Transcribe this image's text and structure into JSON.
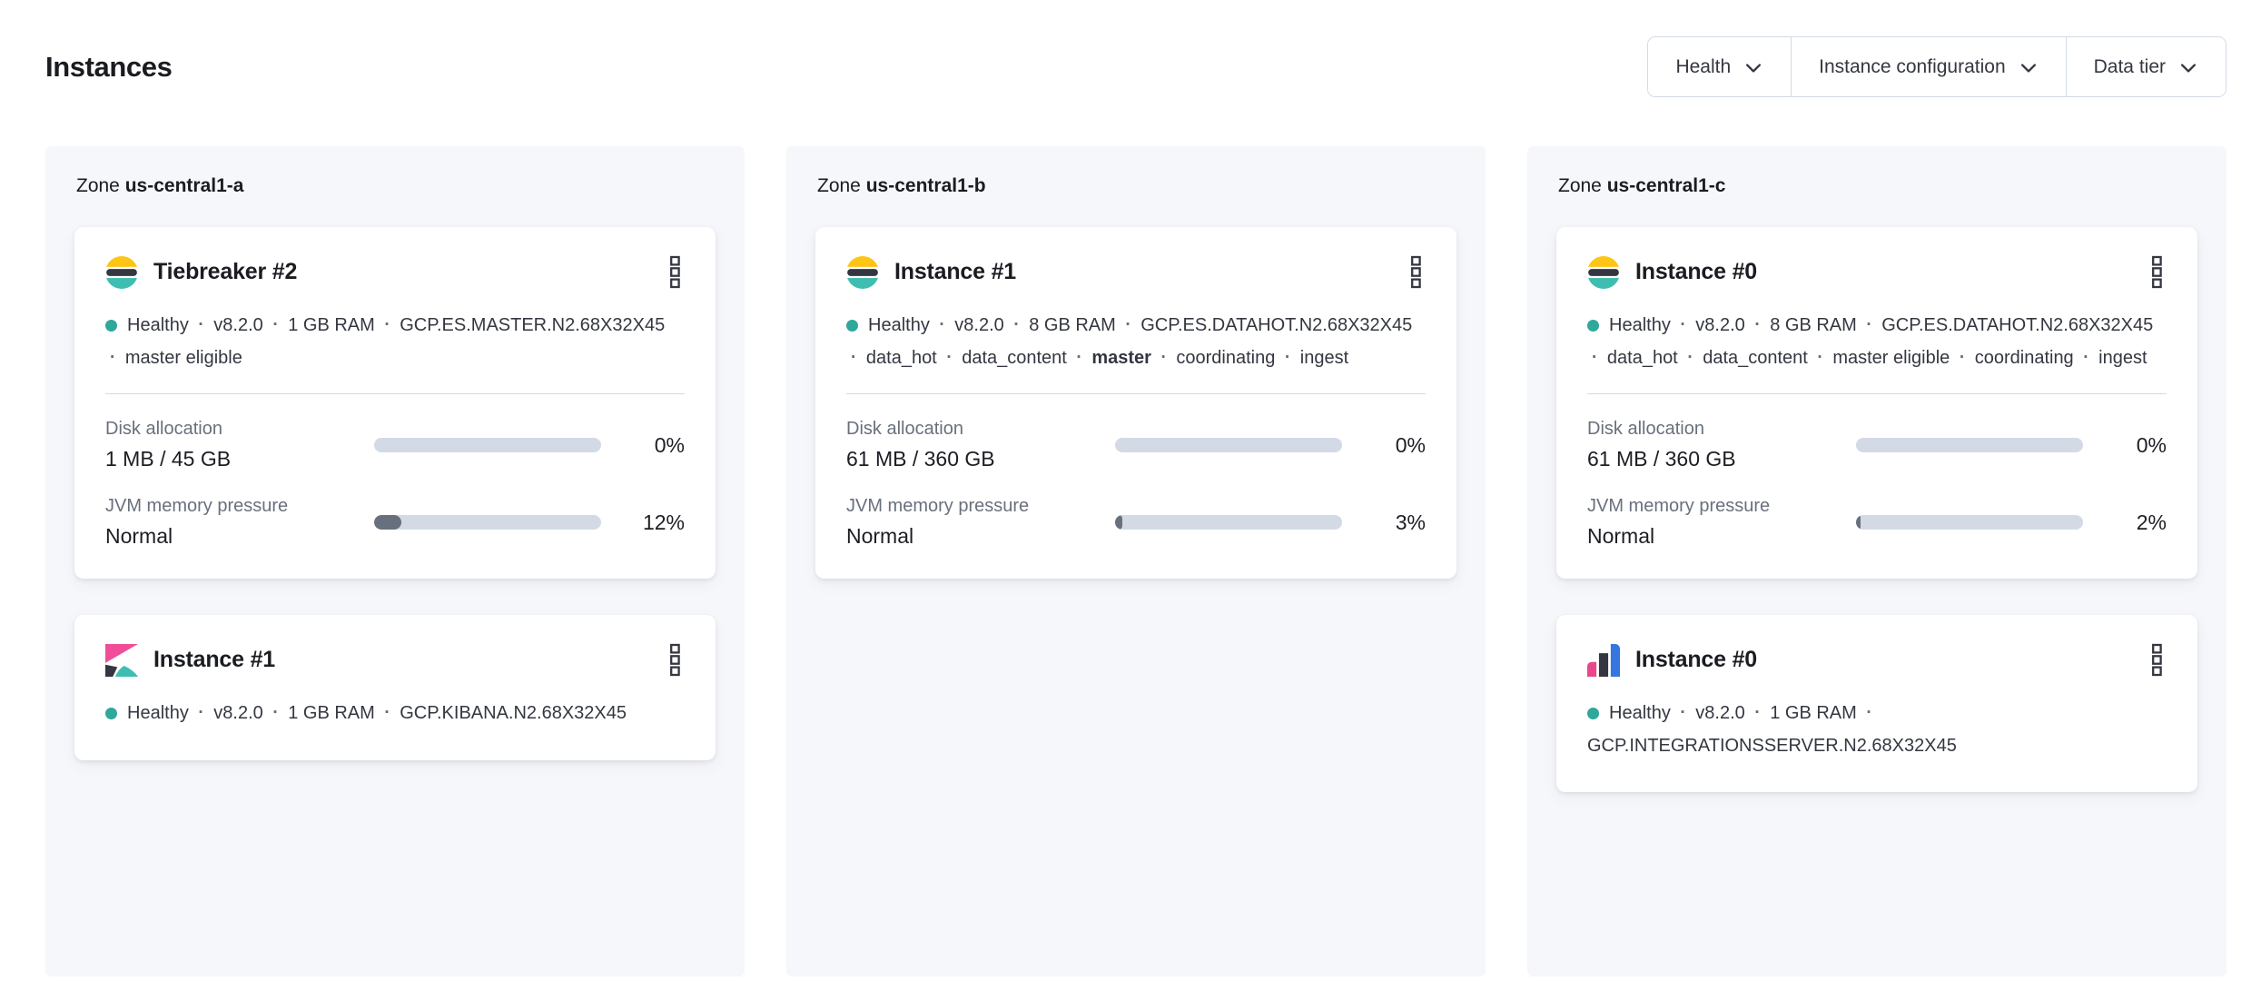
{
  "page": {
    "title": "Instances"
  },
  "filters": [
    {
      "label": "Health",
      "icon": "chevron-down-icon"
    },
    {
      "label": "Instance configuration",
      "icon": "chevron-down-icon"
    },
    {
      "label": "Data tier",
      "icon": "chevron-down-icon"
    }
  ],
  "meta_separator": "·",
  "colors": {
    "text-title": "#1A1C21",
    "text-body": "#343741",
    "text-subdued": "#69707D",
    "panel-bg": "#F6F7FB",
    "border": "#D3DAE6",
    "healthy": "#2FA79B",
    "bar-track": "#D3DAE6",
    "bar-fill": "#69707D",
    "logo-yellow": "#FEC514",
    "logo-dark": "#343741",
    "logo-teal": "#3EBEB0",
    "logo-pink": "#F04E98",
    "logo-pink2": "#E8488B",
    "logo-blue": "#3577DE"
  },
  "zones": [
    {
      "label_prefix": "Zone",
      "name": "us-central1-a",
      "instances": [
        {
          "icon": "elasticsearch-logo",
          "title": "Tiebreaker #2",
          "meta": [
            {
              "text": "Healthy"
            },
            {
              "text": "v8.2.0"
            },
            {
              "text": "1 GB RAM"
            },
            {
              "text": "GCP.ES.MASTER.N2.68X32X45"
            },
            {
              "text": "master eligible"
            }
          ],
          "metrics": [
            {
              "label": "Disk allocation",
              "value": "1 MB / 45 GB",
              "percent": "0%",
              "fill": 0
            },
            {
              "label": "JVM memory pressure",
              "value": "Normal",
              "percent": "12%",
              "fill": 12
            }
          ]
        },
        {
          "icon": "kibana-logo",
          "title": "Instance #1",
          "meta": [
            {
              "text": "Healthy"
            },
            {
              "text": "v8.2.0"
            },
            {
              "text": "1 GB RAM"
            },
            {
              "text": "GCP.KIBANA.N2.68X32X45"
            }
          ]
        }
      ]
    },
    {
      "label_prefix": "Zone",
      "name": "us-central1-b",
      "instances": [
        {
          "icon": "elasticsearch-logo",
          "title": "Instance #1",
          "meta": [
            {
              "text": "Healthy"
            },
            {
              "text": "v8.2.0"
            },
            {
              "text": "8 GB RAM"
            },
            {
              "text": "GCP.ES.DATAHOT.N2.68X32X45"
            },
            {
              "text": "data_hot"
            },
            {
              "text": "data_content"
            },
            {
              "text": "master",
              "bold": true
            },
            {
              "text": "coordinating"
            },
            {
              "text": "ingest"
            }
          ],
          "metrics": [
            {
              "label": "Disk allocation",
              "value": "61 MB / 360 GB",
              "percent": "0%",
              "fill": 0
            },
            {
              "label": "JVM memory pressure",
              "value": "Normal",
              "percent": "3%",
              "fill": 3
            }
          ]
        }
      ]
    },
    {
      "label_prefix": "Zone",
      "name": "us-central1-c",
      "instances": [
        {
          "icon": "elasticsearch-logo",
          "title": "Instance #0",
          "meta": [
            {
              "text": "Healthy"
            },
            {
              "text": "v8.2.0"
            },
            {
              "text": "8 GB RAM"
            },
            {
              "text": "GCP.ES.DATAHOT.N2.68X32X45"
            },
            {
              "text": "data_hot"
            },
            {
              "text": "data_content"
            },
            {
              "text": "master eligible"
            },
            {
              "text": "coordinating"
            },
            {
              "text": "ingest"
            }
          ],
          "metrics": [
            {
              "label": "Disk allocation",
              "value": "61 MB / 360 GB",
              "percent": "0%",
              "fill": 0
            },
            {
              "label": "JVM memory pressure",
              "value": "Normal",
              "percent": "2%",
              "fill": 2
            }
          ]
        },
        {
          "icon": "integrations-server-logo",
          "title": "Instance #0",
          "meta": [
            {
              "text": "Healthy"
            },
            {
              "text": "v8.2.0"
            },
            {
              "text": "1 GB RAM"
            },
            {
              "text": "GCP.INTEGRATIONSSERVER.N2.68X32X45"
            }
          ]
        }
      ]
    }
  ]
}
